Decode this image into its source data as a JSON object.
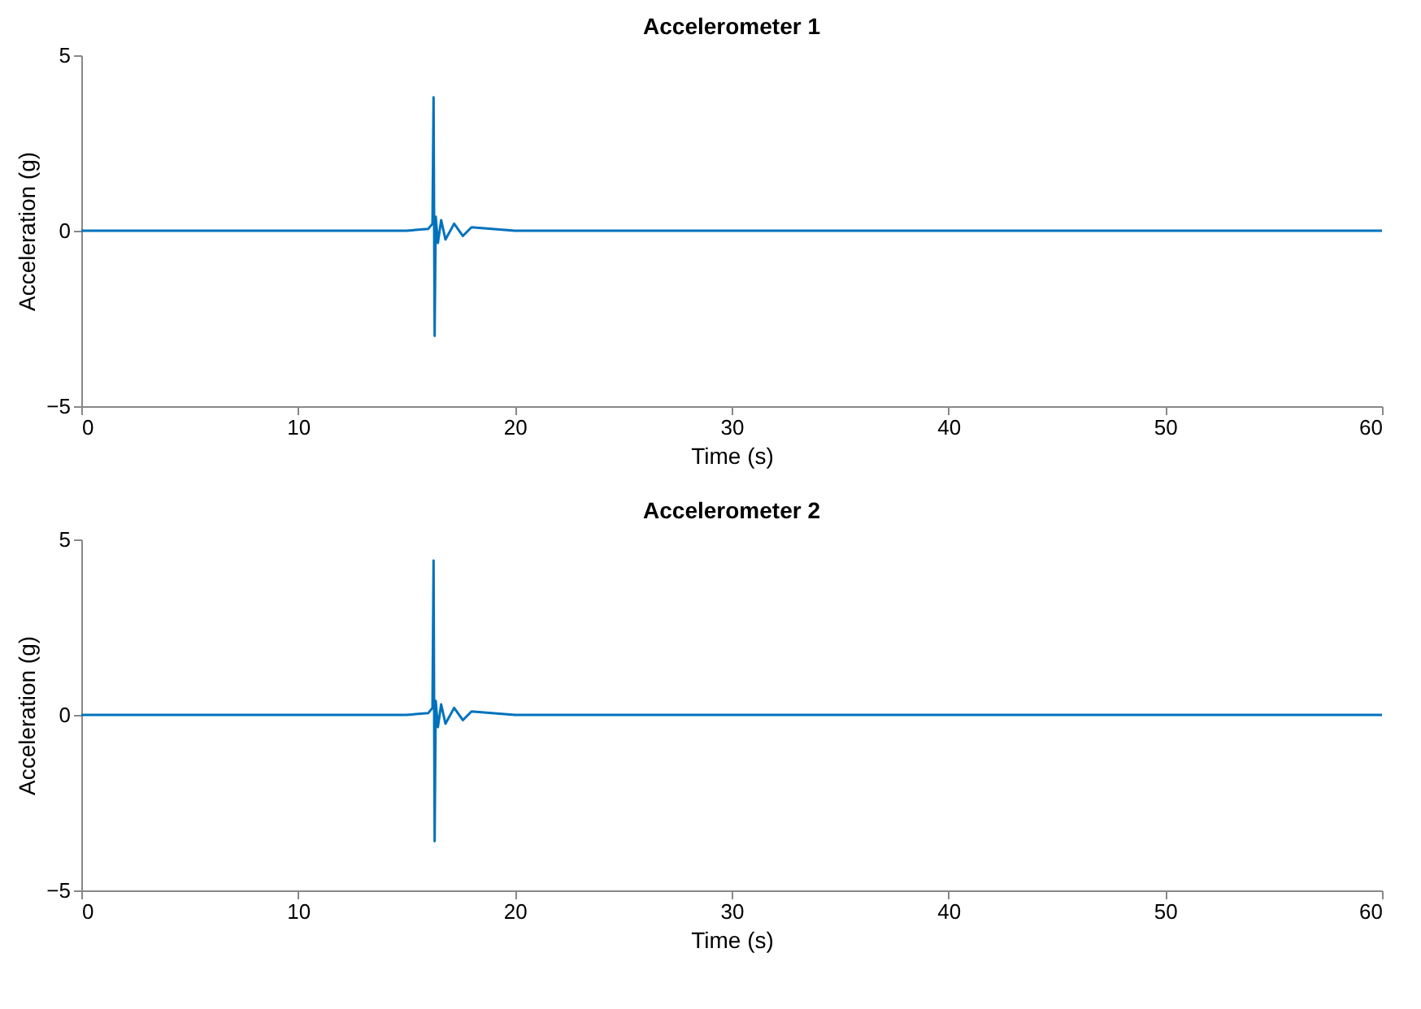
{
  "chart_data": [
    {
      "type": "line",
      "title": "Accelerometer 1",
      "xlabel": "Time (s)",
      "ylabel": "Acceleration (g)",
      "x": [
        0,
        5,
        10,
        15,
        16,
        16.2,
        16.25,
        16.3,
        16.35,
        16.45,
        16.6,
        16.8,
        17.2,
        17.6,
        18,
        20,
        30,
        40,
        50,
        60
      ],
      "series": [
        {
          "color": "#0072bd",
          "values": [
            0,
            0,
            0,
            0,
            0.05,
            0.2,
            3.8,
            -3.0,
            0.4,
            -0.35,
            0.3,
            -0.25,
            0.2,
            -0.15,
            0.1,
            0,
            0,
            0,
            0,
            0
          ]
        }
      ],
      "xlim": [
        0,
        60
      ],
      "xticks": [
        0,
        10,
        20,
        30,
        40,
        50,
        60
      ],
      "ylim": [
        -5,
        5
      ],
      "yticks": [
        -5,
        0,
        5
      ],
      "grid": false,
      "marker": "none",
      "line_style": "solid"
    },
    {
      "type": "line",
      "title": "Accelerometer 2",
      "xlabel": "Time (s)",
      "ylabel": "Acceleration (g)",
      "x": [
        0,
        5,
        10,
        15,
        16,
        16.2,
        16.25,
        16.3,
        16.35,
        16.45,
        16.6,
        16.8,
        17.2,
        17.6,
        18,
        20,
        30,
        40,
        50,
        60
      ],
      "series": [
        {
          "color": "#0072bd",
          "values": [
            0,
            0,
            0,
            0,
            0.05,
            0.2,
            4.4,
            -3.6,
            0.4,
            -0.35,
            0.3,
            -0.25,
            0.2,
            -0.15,
            0.1,
            0,
            0,
            0,
            0,
            0
          ]
        }
      ],
      "xlim": [
        0,
        60
      ],
      "xticks": [
        0,
        10,
        20,
        30,
        40,
        50,
        60
      ],
      "ylim": [
        -5,
        5
      ],
      "yticks": [
        -5,
        0,
        5
      ],
      "grid": false,
      "marker": "none",
      "line_style": "solid"
    }
  ]
}
